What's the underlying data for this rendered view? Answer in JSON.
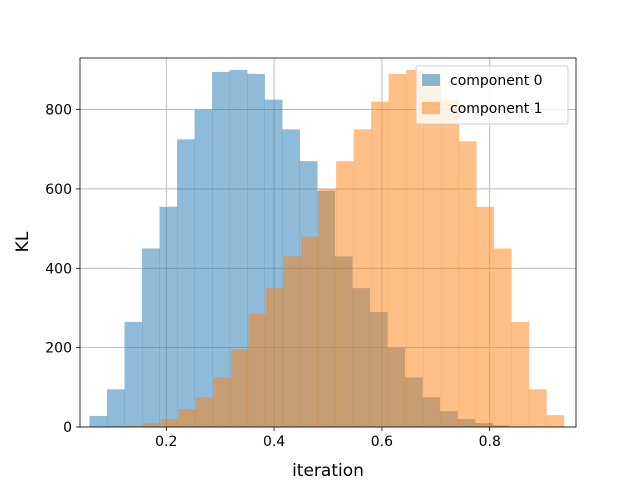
{
  "chart_data": {
    "type": "histogram",
    "xlabel": "iteration",
    "ylabel": "KL",
    "xlim": [
      0.04,
      0.96
    ],
    "ylim": [
      0,
      930
    ],
    "x_ticks": [
      0.2,
      0.4,
      0.6,
      0.8
    ],
    "x_tick_labels": [
      "0.2",
      "0.4",
      "0.6",
      "0.8"
    ],
    "y_ticks": [
      0,
      200,
      400,
      600,
      800
    ],
    "y_tick_labels": [
      "0",
      "200",
      "400",
      "600",
      "800"
    ],
    "grid": true,
    "legend_position": "top-right",
    "series": [
      {
        "name": "component 0",
        "color": "#1f77b4",
        "alpha": 0.5,
        "bin_width": 0.0325,
        "bin_starts": [
          0.0575,
          0.09,
          0.1225,
          0.155,
          0.1875,
          0.22,
          0.2525,
          0.285,
          0.3175,
          0.35,
          0.3825,
          0.415,
          0.4475,
          0.48,
          0.5125,
          0.545,
          0.5775,
          0.61,
          0.6425,
          0.675,
          0.7075,
          0.74,
          0.7725,
          0.805,
          0.8375,
          0.87
        ],
        "values": [
          28,
          95,
          265,
          450,
          555,
          725,
          800,
          895,
          900,
          890,
          825,
          750,
          670,
          595,
          430,
          350,
          290,
          200,
          125,
          75,
          40,
          20,
          10,
          4,
          1,
          0
        ]
      },
      {
        "name": "component 1",
        "color": "#ff7f0e",
        "alpha": 0.5,
        "bin_width": 0.0325,
        "bin_starts": [
          0.0925,
          0.125,
          0.1575,
          0.19,
          0.2225,
          0.255,
          0.2875,
          0.32,
          0.3525,
          0.385,
          0.4175,
          0.45,
          0.4825,
          0.515,
          0.5475,
          0.58,
          0.6125,
          0.645,
          0.6775,
          0.71,
          0.7425,
          0.775,
          0.8075,
          0.84,
          0.8725,
          0.905
        ],
        "values": [
          1,
          3,
          10,
          20,
          45,
          75,
          125,
          195,
          285,
          350,
          430,
          480,
          600,
          670,
          750,
          820,
          890,
          900,
          890,
          825,
          720,
          555,
          450,
          265,
          95,
          30
        ]
      }
    ]
  }
}
